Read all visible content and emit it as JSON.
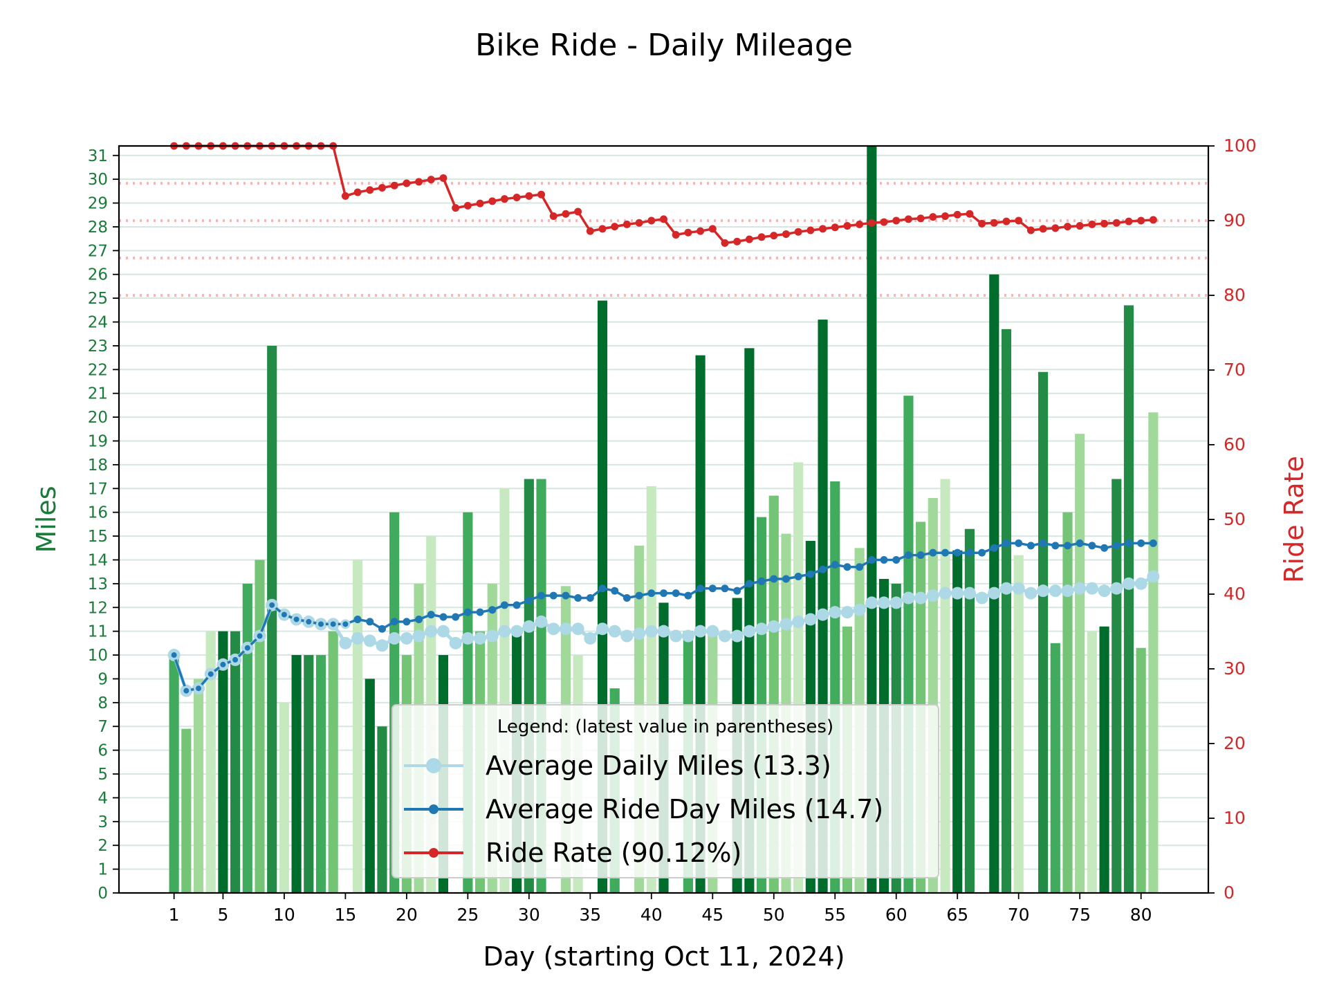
{
  "chart_data": {
    "type": "bar",
    "title": "Bike Ride - Daily Mileage",
    "xlabel": "Day (starting Oct 11, 2024)",
    "ylabel": "Miles",
    "y2label": "Ride Rate",
    "xlim": [
      -3.5,
      85.5
    ],
    "ylim": [
      0,
      31.4
    ],
    "y2lim": [
      0,
      100
    ],
    "x_ticks": [
      1,
      5,
      10,
      15,
      20,
      25,
      30,
      35,
      40,
      45,
      50,
      55,
      60,
      65,
      70,
      75,
      80
    ],
    "y_ticks": [
      0,
      1,
      2,
      3,
      4,
      5,
      6,
      7,
      8,
      9,
      10,
      11,
      12,
      13,
      14,
      15,
      16,
      17,
      18,
      19,
      20,
      21,
      22,
      23,
      24,
      25,
      26,
      27,
      28,
      29,
      30,
      31
    ],
    "y2_ticks": [
      0,
      10,
      20,
      30,
      40,
      50,
      60,
      70,
      80,
      90,
      100
    ],
    "y2_reference_lines": [
      80,
      85,
      90,
      95
    ],
    "grid": true,
    "legend_title": "Legend: (latest value in parentheses)",
    "legend_position": "lower-center",
    "colors": {
      "miles_axis": "#1a7a3a",
      "rate_axis": "#d62728",
      "avg_daily": "#add8e6",
      "avg_ride_day": "#1f77b4",
      "ride_rate": "#d62728",
      "bar_shades": [
        "#c7e9c0",
        "#a1d99b",
        "#74c476",
        "#41ab5d",
        "#238b45",
        "#006d2c"
      ]
    },
    "daily_miles": [
      10,
      6.9,
      9,
      11,
      11,
      11,
      13,
      14,
      23,
      8,
      10,
      10,
      10,
      11,
      0,
      14,
      9,
      7,
      16,
      10,
      13,
      15,
      10,
      0,
      16,
      11,
      13,
      17,
      11,
      17.4,
      17.4,
      0,
      12.9,
      10,
      0,
      24.9,
      8.6,
      0,
      14.6,
      17.1,
      12.2,
      0,
      11,
      22.6,
      11,
      0,
      12.4,
      22.9,
      15.8,
      16.7,
      15.1,
      18.1,
      14.8,
      24.1,
      17.3,
      11.2,
      14.5,
      31.4,
      13.2,
      13,
      20.9,
      15.6,
      16.6,
      17.4,
      14.4,
      15.3,
      0,
      26,
      23.7,
      14.2,
      0,
      21.9,
      10.5,
      16,
      19.3,
      11,
      11.2,
      17.4,
      24.7,
      10.3,
      20.2
    ],
    "series": [
      {
        "name": "Average Daily Miles",
        "latest": "13.3",
        "values": [
          10,
          8.5,
          8.6,
          9.2,
          9.6,
          9.8,
          10.3,
          10.8,
          12.1,
          11.7,
          11.5,
          11.4,
          11.3,
          11.3,
          10.5,
          10.7,
          10.6,
          10.4,
          10.7,
          10.7,
          10.8,
          11,
          11,
          10.5,
          10.7,
          10.7,
          10.8,
          11,
          11,
          11.2,
          11.4,
          11.1,
          11.1,
          11.1,
          10.7,
          11.1,
          11,
          10.8,
          10.9,
          11,
          11,
          10.8,
          10.8,
          11,
          11,
          10.8,
          10.8,
          11,
          11.1,
          11.2,
          11.3,
          11.4,
          11.5,
          11.7,
          11.8,
          11.8,
          11.9,
          12.2,
          12.2,
          12.2,
          12.4,
          12.4,
          12.5,
          12.6,
          12.6,
          12.6,
          12.4,
          12.6,
          12.8,
          12.8,
          12.6,
          12.7,
          12.7,
          12.7,
          12.8,
          12.8,
          12.7,
          12.8,
          13,
          13,
          13.3
        ]
      },
      {
        "name": "Average Ride Day Miles",
        "latest": "14.7",
        "values": [
          10,
          8.5,
          8.6,
          9.2,
          9.6,
          9.8,
          10.3,
          10.8,
          12.1,
          11.7,
          11.5,
          11.4,
          11.3,
          11.3,
          11.3,
          11.5,
          11.4,
          11.1,
          11.4,
          11.4,
          11.5,
          11.7,
          11.6,
          11.6,
          11.8,
          11.8,
          11.9,
          12.1,
          12.1,
          12.3,
          12.5,
          12.5,
          12.5,
          12.4,
          12.4,
          12.8,
          12.7,
          12.4,
          12.5,
          12.6,
          12.6,
          12.6,
          12.5,
          12.8,
          12.8,
          12.8,
          12.7,
          13,
          13.1,
          13.2,
          13.2,
          13.3,
          13.4,
          13.6,
          13.8,
          13.7,
          13.7,
          14,
          14,
          14,
          14.2,
          14.2,
          14.3,
          14.3,
          14.3,
          14.3,
          14.3,
          14.5,
          14.7,
          14.7,
          14.6,
          14.7,
          14.6,
          14.6,
          14.7,
          14.6,
          14.5,
          14.6,
          14.7,
          14.7,
          14.7
        ]
      },
      {
        "name": "Ride Rate",
        "latest": "90.12%",
        "axis": "right",
        "values": [
          100,
          100,
          100,
          100,
          100,
          100,
          100,
          100,
          100,
          100,
          100,
          100,
          100,
          100,
          93.3,
          93.8,
          94.1,
          94.4,
          94.7,
          95,
          95.2,
          95.5,
          95.7,
          91.7,
          92,
          92.3,
          92.6,
          92.9,
          93.1,
          93.3,
          93.5,
          90.6,
          90.9,
          91.2,
          88.6,
          88.9,
          89.2,
          89.5,
          89.7,
          90,
          90.2,
          88.1,
          88.4,
          88.6,
          88.9,
          87,
          87.2,
          87.5,
          87.8,
          88,
          88.2,
          88.5,
          88.7,
          88.9,
          89.1,
          89.3,
          89.5,
          89.7,
          89.8,
          90,
          90.2,
          90.3,
          90.5,
          90.6,
          90.8,
          90.9,
          89.6,
          89.7,
          89.9,
          90,
          88.7,
          88.9,
          89,
          89.2,
          89.3,
          89.5,
          89.6,
          89.7,
          89.9,
          90,
          90.1
        ]
      }
    ]
  }
}
